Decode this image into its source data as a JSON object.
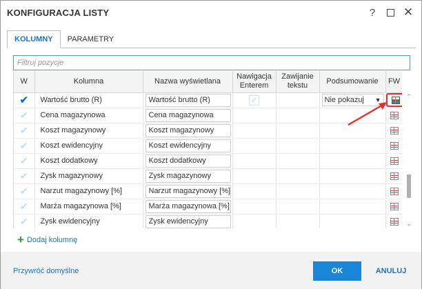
{
  "window": {
    "title": "KONFIGURACJA LISTY",
    "help_glyph": "?",
    "close_glyph": "✕"
  },
  "tabs": [
    {
      "label": "KOLUMNY",
      "active": true
    },
    {
      "label": "PARAMETRY",
      "active": false
    }
  ],
  "filter": {
    "placeholder": "Filtruj pozycje",
    "value": ""
  },
  "grid": {
    "headers": {
      "w": "W",
      "column": "Kolumna",
      "display_name": "Nazwa wyświetlana",
      "nav_l1": "Nawigacja",
      "nav_l2": "Enterem",
      "wrap_l1": "Zawijanie",
      "wrap_l2": "tekstu",
      "summary": "Podsumowanie",
      "fw": "FW"
    },
    "rows": [
      {
        "visible": true,
        "column": "Wartość brutto (R)",
        "display_name": "Wartość brutto (R)",
        "summary": "Nie pokazuj"
      },
      {
        "visible": false,
        "column": "Cena magazynowa",
        "display_name": "Cena magazynowa",
        "summary": ""
      },
      {
        "visible": false,
        "column": "Koszt magazynowy",
        "display_name": "Koszt magazynowy",
        "summary": ""
      },
      {
        "visible": false,
        "column": "Koszt ewidencyjny",
        "display_name": "Koszt ewidencyjny",
        "summary": ""
      },
      {
        "visible": false,
        "column": "Koszt dodatkowy",
        "display_name": "Koszt dodatkowy",
        "summary": ""
      },
      {
        "visible": false,
        "column": "Zysk magazynowy",
        "display_name": "Zysk magazynowy",
        "summary": ""
      },
      {
        "visible": false,
        "column": "Narzut magazynowy [%]",
        "display_name": "Narzut magazynowy [%]",
        "summary": ""
      },
      {
        "visible": false,
        "column": "Marża magazynowa [%]",
        "display_name": "Marża magazynowa [%]",
        "summary": ""
      },
      {
        "visible": false,
        "column": "Zysk ewidencyjny",
        "display_name": "Zysk ewidencyjny",
        "summary": ""
      }
    ]
  },
  "add_column_label": "Dodaj kolumnę",
  "footer": {
    "restore_label": "Przywróć domyślne",
    "ok_label": "OK",
    "cancel_label": "ANULUJ"
  },
  "colors": {
    "accent": "#1a73c8",
    "ok_button": "#1a86d8",
    "annotation": "#e03030"
  }
}
